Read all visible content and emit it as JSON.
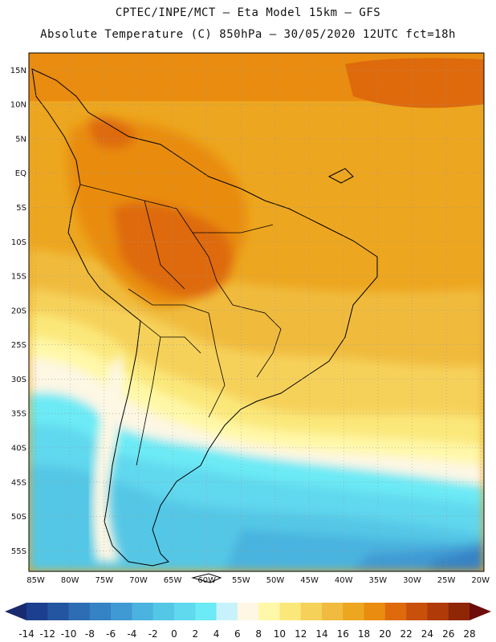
{
  "header": {
    "line1": "CPTEC/INPE/MCT –  Eta Model 15km – GFS",
    "line2": "Absolute Temperature (C) 850hPa – 30/05/2020 12UTC fct=18h"
  },
  "map": {
    "lat_labels": [
      "15N",
      "10N",
      "5N",
      "EQ",
      "5S",
      "10S",
      "15S",
      "20S",
      "25S",
      "30S",
      "35S",
      "40S",
      "45S",
      "50S",
      "55S"
    ],
    "lon_labels": [
      "85W",
      "80W",
      "75W",
      "70W",
      "65W",
      "60W",
      "55W",
      "50W",
      "45W",
      "40W",
      "35W",
      "30W",
      "25W",
      "20W"
    ],
    "lat_values": [
      15,
      10,
      5,
      0,
      -5,
      -10,
      -15,
      -20,
      -25,
      -30,
      -35,
      -40,
      -45,
      -50,
      -55
    ],
    "lon_values": [
      -85,
      -80,
      -75,
      -70,
      -65,
      -60,
      -55,
      -50,
      -45,
      -40,
      -35,
      -30,
      -25,
      -20
    ]
  },
  "colorbar": {
    "labels": [
      "-14",
      "-12",
      "-10",
      "-8",
      "-6",
      "-4",
      "-2",
      "0",
      "2",
      "4",
      "6",
      "8",
      "10",
      "12",
      "14",
      "16",
      "18",
      "20",
      "22",
      "24",
      "26",
      "28"
    ],
    "colors": [
      "#1c3f8f",
      "#2455a0",
      "#2d6db4",
      "#3583c4",
      "#3f9ad3",
      "#4ab3df",
      "#55c7e6",
      "#60d8ee",
      "#6ceaf5",
      "#c8f2fb",
      "#fdf7e4",
      "#fff8a8",
      "#fbe87a",
      "#f6d15a",
      "#f0bb3e",
      "#eda61f",
      "#e98c10",
      "#de6a0c",
      "#c9500a",
      "#b03a08",
      "#8f2606"
    ],
    "left_arrow_color": "#1a2a6f",
    "right_arrow_color": "#6e0b0b"
  }
}
